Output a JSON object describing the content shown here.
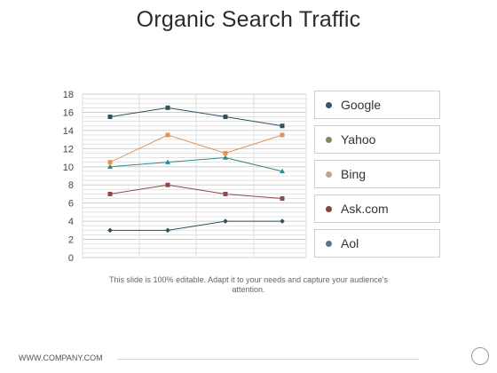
{
  "title": "Organic Search Traffic",
  "caption": "This slide is 100% editable. Adapt it to your needs and capture your audience's attention.",
  "footer": {
    "url": "WWW.COMPANY.COM"
  },
  "chart_data": {
    "type": "line",
    "title": "Organic Search Traffic",
    "xlabel": "",
    "ylabel": "",
    "ylim": [
      0,
      18
    ],
    "ytick_step": 2,
    "yticks": [
      "0",
      "2",
      "4",
      "6",
      "8",
      "10",
      "12",
      "14",
      "16",
      "18"
    ],
    "x": [
      1,
      2,
      3,
      4
    ],
    "grid": true,
    "legend_position": "right",
    "series": [
      {
        "name": "Google",
        "values": [
          15.5,
          16.5,
          15.5,
          14.5
        ],
        "color": "#2e5060",
        "marker": "square"
      },
      {
        "name": "Yahoo",
        "values": [
          10.0,
          10.5,
          11.0,
          9.5
        ],
        "color": "#2f8a8a",
        "marker": "triangle"
      },
      {
        "name": "Bing",
        "values": [
          10.5,
          13.5,
          11.5,
          13.5
        ],
        "color": "#e0935a",
        "marker": "square"
      },
      {
        "name": "Ask.com",
        "values": [
          7.0,
          8.0,
          7.0,
          6.5
        ],
        "color": "#8a4a4a",
        "marker": "square"
      },
      {
        "name": "Aol",
        "values": [
          3.0,
          3.0,
          4.0,
          4.0
        ],
        "color": "#2e5060",
        "marker": "diamond"
      }
    ]
  },
  "legend": [
    {
      "label": "Google",
      "color": "#3a5566"
    },
    {
      "label": "Yahoo",
      "color": "#7d8a5a"
    },
    {
      "label": "Bing",
      "color": "#c4a58c"
    },
    {
      "label": "Ask.com",
      "color": "#8a4040"
    },
    {
      "label": "Aol",
      "color": "#5e7480"
    }
  ]
}
